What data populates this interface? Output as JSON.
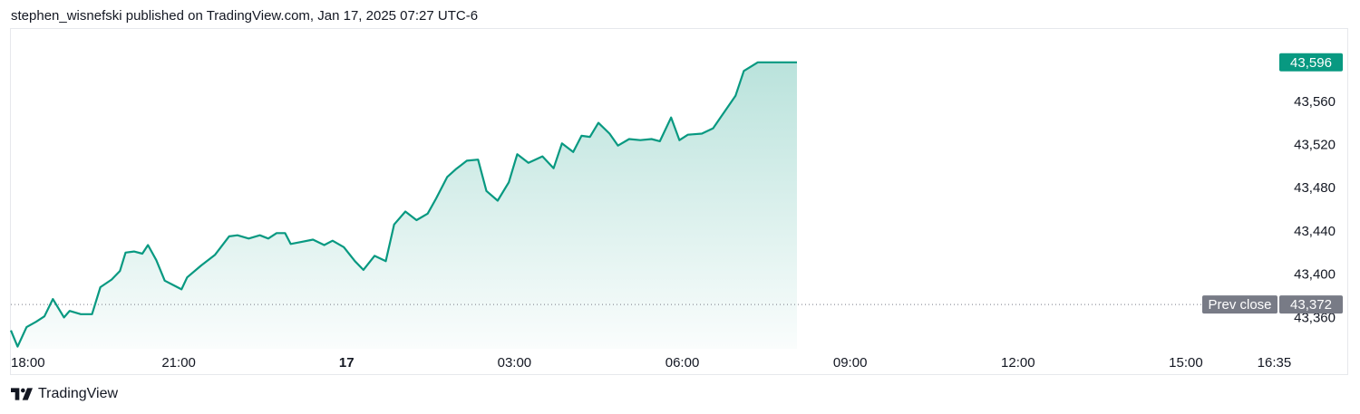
{
  "header": {
    "attribution": "stephen_wisnefski published on TradingView.com, Jan 17, 2025 07:27 UTC-6"
  },
  "footer": {
    "brand": "TradingView",
    "logo_icon": "tradingview-logo-icon"
  },
  "colors": {
    "line": "#089981",
    "last_price_bg": "#089981",
    "prev_close_bg": "#787b86",
    "grid": "#e6e8ec",
    "text": "#131722"
  },
  "chart_data": {
    "type": "area",
    "x_tick_labels": [
      "18:00",
      "21:00",
      "17",
      "03:00",
      "06:00",
      "09:00",
      "12:00",
      "15:00",
      "16:35"
    ],
    "x_tick_hours": [
      0,
      3,
      6,
      9,
      12,
      15,
      18,
      21,
      22.58
    ],
    "x_range_hours": [
      0,
      22.8
    ],
    "x_origin_label": "18:00",
    "y_tick_labels": [
      "43,560",
      "43,520",
      "43,480",
      "43,440",
      "43,400",
      "43,360"
    ],
    "y_tick_values": [
      43560,
      43520,
      43480,
      43440,
      43400,
      43360
    ],
    "ylim": [
      43331,
      43626
    ],
    "last_price": 43596,
    "last_price_label": "43,596",
    "prev_close": 43372,
    "prev_close_label": "43,372",
    "prev_close_text": "Prev close",
    "series": [
      {
        "x": [
          0,
          0.12,
          0.28,
          0.45,
          0.6,
          0.75,
          0.95,
          1.05,
          1.25,
          1.45,
          1.6,
          1.8,
          1.95,
          2.05,
          2.2,
          2.35,
          2.45,
          2.6,
          2.75,
          2.9,
          3.05,
          3.15,
          3.4,
          3.65,
          3.9,
          4.05,
          4.25,
          4.45,
          4.6,
          4.75,
          4.9,
          5.0,
          5.2,
          5.4,
          5.6,
          5.75,
          5.95,
          6.15,
          6.3,
          6.5,
          6.7,
          6.85,
          7.05,
          7.25,
          7.45,
          7.6,
          7.8,
          7.95,
          8.15,
          8.35,
          8.5,
          8.7,
          8.9,
          9.05,
          9.25,
          9.5,
          9.7,
          9.85,
          10.05,
          10.2,
          10.35,
          10.5,
          10.7,
          10.85,
          11.05,
          11.25,
          11.45,
          11.6,
          11.8,
          11.95,
          12.1,
          12.35,
          12.55,
          12.75,
          12.95,
          13.1,
          13.35,
          13.5,
          13.7,
          13.85,
          14.0,
          14.05
        ],
        "y": [
          43348,
          43333,
          43351,
          43356,
          43361,
          43377,
          43360,
          43366,
          43363,
          43363,
          43388,
          43395,
          43403,
          43420,
          43421,
          43419,
          43427,
          43413,
          43394,
          43390,
          43386,
          43397,
          43408,
          43418,
          43435,
          43436,
          43433,
          43436,
          43433,
          43438,
          43438,
          43428,
          43430,
          43432,
          43427,
          43431,
          43425,
          43412,
          43404,
          43417,
          43412,
          43446,
          43458,
          43450,
          43456,
          43470,
          43490,
          43497,
          43505,
          43506,
          43477,
          43468,
          43485,
          43511,
          43503,
          43509,
          43498,
          43521,
          43513,
          43528,
          43527,
          43540,
          43530,
          43519,
          43525,
          43524,
          43525,
          43523,
          43545,
          43524,
          43529,
          43530,
          43535,
          43550,
          43565,
          43588,
          43596,
          43596,
          43596,
          43596,
          43596,
          43596
        ]
      }
    ]
  }
}
